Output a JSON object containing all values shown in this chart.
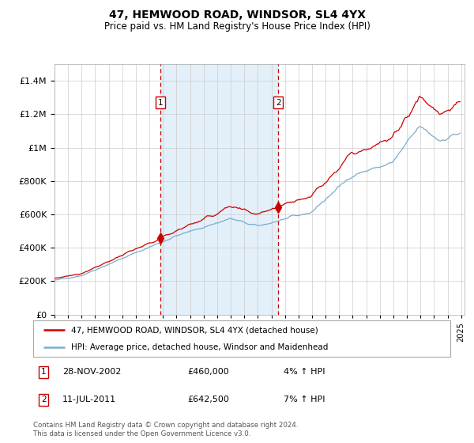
{
  "title": "47, HEMWOOD ROAD, WINDSOR, SL4 4YX",
  "subtitle": "Price paid vs. HM Land Registry's House Price Index (HPI)",
  "legend_line1": "47, HEMWOOD ROAD, WINDSOR, SL4 4YX (detached house)",
  "legend_line2": "HPI: Average price, detached house, Windsor and Maidenhead",
  "transaction1_date": "28-NOV-2002",
  "transaction1_price": 460000,
  "transaction1_label": "4% ↑ HPI",
  "transaction2_date": "11-JUL-2011",
  "transaction2_price": 642500,
  "transaction2_label": "7% ↑ HPI",
  "footer": "Contains HM Land Registry data © Crown copyright and database right 2024.\nThis data is licensed under the Open Government Licence v3.0.",
  "red_color": "#cc0000",
  "blue_color": "#7aadcf",
  "ylim": [
    0,
    1500000
  ],
  "year_start": 1995,
  "year_end": 2025
}
